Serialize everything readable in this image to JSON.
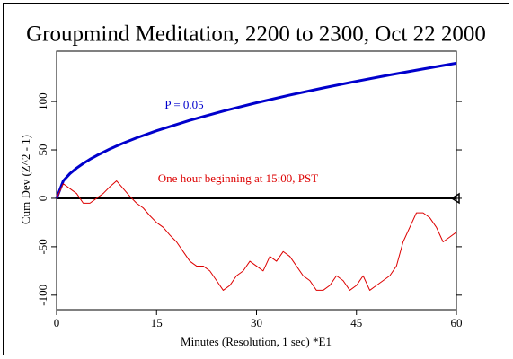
{
  "chart_data": {
    "type": "line",
    "title": "Groupmind Meditation, 2200 to 2300, Oct 22 2000",
    "x_label": "Minutes (Resolution, 1 sec)   *E1",
    "y_label": "Cum Dev (Z^2 - 1)",
    "xlim": [
      0,
      60
    ],
    "ylim": [
      -115,
      152
    ],
    "xticks": [
      0,
      15,
      30,
      45,
      60
    ],
    "yticks": [
      -100,
      -50,
      0,
      50,
      100
    ],
    "reference_line": 0,
    "series": [
      {
        "color": "#0000cc",
        "x": [
          0,
          1,
          2,
          3,
          4,
          5,
          6,
          8,
          10,
          12,
          15,
          20,
          25,
          30,
          35,
          40,
          45,
          50,
          55,
          60
        ],
        "values": [
          0,
          18.0,
          25.5,
          31.2,
          36.0,
          40.3,
          44.1,
          51.0,
          57.0,
          62.4,
          69.8,
          80.6,
          90.1,
          98.7,
          106.6,
          114.0,
          120.9,
          127.4,
          133.6,
          139.6
        ]
      },
      {
        "color": "#dd0000",
        "x": [
          0,
          1,
          2,
          3,
          4,
          5,
          6,
          7,
          8,
          9,
          10,
          11,
          12,
          13,
          14,
          15,
          16,
          17,
          18,
          19,
          20,
          21,
          22,
          23,
          24,
          25,
          26,
          27,
          28,
          29,
          30,
          31,
          32,
          33,
          34,
          35,
          36,
          37,
          38,
          39,
          40,
          41,
          42,
          43,
          44,
          45,
          46,
          47,
          48,
          49,
          50,
          51,
          52,
          53,
          54,
          55,
          56,
          57,
          58,
          59,
          60
        ],
        "values": [
          0,
          15,
          10,
          5,
          -5,
          -5,
          0,
          5,
          12,
          18,
          10,
          2,
          -5,
          -10,
          -18,
          -25,
          -30,
          -38,
          -45,
          -55,
          -65,
          -70,
          -70,
          -75,
          -85,
          -95,
          -90,
          -80,
          -75,
          -65,
          -70,
          -75,
          -60,
          -65,
          -55,
          -60,
          -70,
          -80,
          -85,
          -95,
          -95,
          -90,
          -80,
          -85,
          -95,
          -90,
          -80,
          -95,
          -90,
          -85,
          -80,
          -70,
          -45,
          -30,
          -15,
          -15,
          -20,
          -30,
          -45,
          -40,
          -35
        ]
      }
    ],
    "annotations": [
      {
        "text": "P = 0.05",
        "color": "#0000cc"
      },
      {
        "text": "One hour beginning at 15:00, PST",
        "color": "#dd0000"
      }
    ]
  }
}
